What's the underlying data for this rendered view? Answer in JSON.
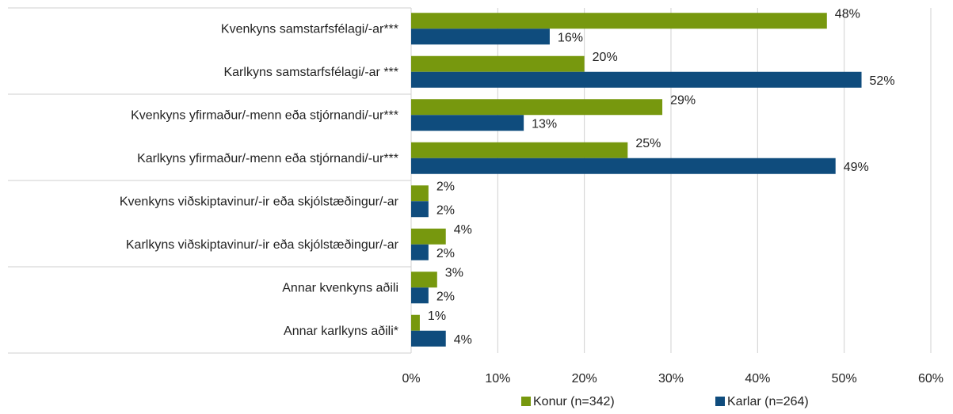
{
  "chart_data": {
    "type": "bar",
    "orientation": "horizontal",
    "categories": [
      "Kvenkyns samstarfsfélagi/-ar***",
      "Karlkyns samstarfsfélagi/-ar ***",
      "Kvenkyns  yfirmaður/-menn eða stjórnandi/-ur***",
      "Karlkyns yfirmaður/-menn eða stjórnandi/-ur***",
      "Kvenkyns  viðskiptavinur/-ir eða skjólstæðingur/-ar",
      "Karlkyns viðskiptavinur/-ir eða skjólstæðingur/-ar",
      "Annar kvenkyns aðili",
      "Annar karlkyns aðili*"
    ],
    "series": [
      {
        "name": "Konur (n=342)",
        "color": "#77980e",
        "values": [
          48,
          20,
          29,
          25,
          2,
          4,
          3,
          1
        ],
        "value_labels": [
          "48%",
          "20%",
          "29%",
          "25%",
          "2%",
          "4%",
          "3%",
          "1%"
        ]
      },
      {
        "name": "Karlar (n=264)",
        "color": "#0f4c7d",
        "values": [
          16,
          52,
          13,
          49,
          2,
          2,
          2,
          4
        ],
        "value_labels": [
          "16%",
          "52%",
          "13%",
          "49%",
          "2%",
          "2%",
          "2%",
          "4%"
        ]
      }
    ],
    "xlim": [
      0,
      60
    ],
    "xticks": [
      {
        "value": 0,
        "label": "0%"
      },
      {
        "value": 10,
        "label": "10%"
      },
      {
        "value": 20,
        "label": "20%"
      },
      {
        "value": 30,
        "label": "30%"
      },
      {
        "value": 40,
        "label": "40%"
      },
      {
        "value": 50,
        "label": "50%"
      },
      {
        "value": 60,
        "label": "60%"
      }
    ],
    "grid": true,
    "legend": "bottom"
  }
}
